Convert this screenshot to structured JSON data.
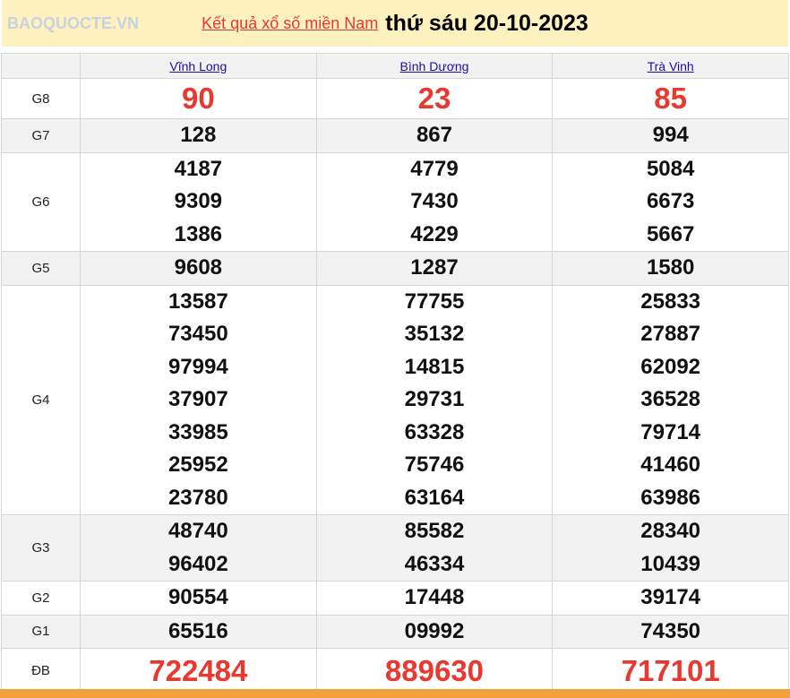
{
  "header": {
    "link": "Kết quả xổ số miền Nam",
    "date": "thứ sáu 20-10-2023"
  },
  "provinces": [
    "Vĩnh Long",
    "Bình Dương",
    "Trà Vinh"
  ],
  "rows": [
    {
      "label": "G8",
      "style": "big",
      "values": [
        [
          "90"
        ],
        [
          "23"
        ],
        [
          "85"
        ]
      ]
    },
    {
      "label": "G7",
      "values": [
        [
          "128"
        ],
        [
          "867"
        ],
        [
          "994"
        ]
      ]
    },
    {
      "label": "G6",
      "values": [
        [
          "4187",
          "9309",
          "1386"
        ],
        [
          "4779",
          "7430",
          "4229"
        ],
        [
          "5084",
          "6673",
          "5667"
        ]
      ]
    },
    {
      "label": "G5",
      "values": [
        [
          "9608"
        ],
        [
          "1287"
        ],
        [
          "1580"
        ]
      ]
    },
    {
      "label": "G4",
      "values": [
        [
          "13587",
          "73450",
          "97994",
          "37907",
          "33985",
          "25952",
          "23780"
        ],
        [
          "77755",
          "35132",
          "14815",
          "29731",
          "63328",
          "75746",
          "63164"
        ],
        [
          "25833",
          "27887",
          "62092",
          "36528",
          "79714",
          "41460",
          "63986"
        ]
      ]
    },
    {
      "label": "G3",
      "values": [
        [
          "48740",
          "96402"
        ],
        [
          "85582",
          "46334"
        ],
        [
          "28340",
          "10439"
        ]
      ]
    },
    {
      "label": "G2",
      "values": [
        [
          "90554"
        ],
        [
          "17448"
        ],
        [
          "39174"
        ]
      ]
    },
    {
      "label": "G1",
      "values": [
        [
          "65516"
        ],
        [
          "09992"
        ],
        [
          "74350"
        ]
      ]
    },
    {
      "label": "ĐB",
      "style": "db",
      "values": [
        [
          "722484"
        ],
        [
          "889630"
        ],
        [
          "717101"
        ]
      ]
    }
  ],
  "watermark": "BAOQUOCTE.VN",
  "colors": {
    "accent": "#e8382f",
    "title_bg": "#fdf1c0",
    "footer": "#f4a03c"
  }
}
